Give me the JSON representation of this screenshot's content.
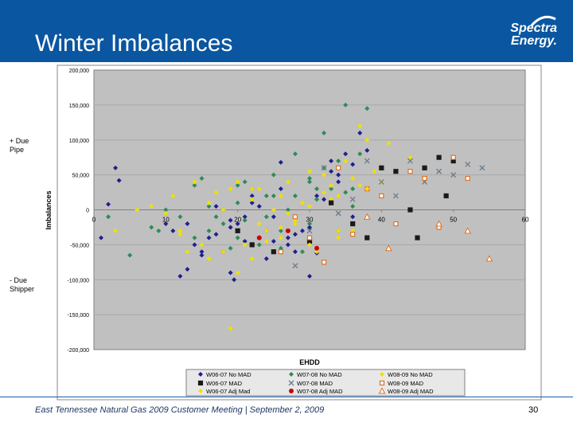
{
  "slide": {
    "title": "Winter Imbalances",
    "logo_line1": "Spectra",
    "logo_line2": "Energy.",
    "due_pipe_label": "+ Due Pipe",
    "due_shipper_label": "- Due Shipper",
    "footer": "East Tennessee Natural Gas 2009 Customer Meeting | September 2, 2009",
    "page_number": "30"
  },
  "colors": {
    "header_bg": "#0a56a0",
    "plot_bg": "#c0c0c0",
    "W06-07 No MAD": "#1f1f8f",
    "W07-08 No MAD": "#2e8b57",
    "W08-09 No MAD": "#f0e000",
    "W06-07 MAD": "#1a1a1a",
    "W07-08 MAD": "#6a7a8a",
    "W08-09 MAD": "#e07020",
    "W06-07 Adj Mad": "#f0e000",
    "W07-08 Adj MAD": "#cc0000",
    "W08-09 Adj MAD": "#e07020"
  },
  "chart_data": {
    "type": "scatter",
    "xlabel": "EHDD",
    "ylabel": "Imbalances",
    "xlim": [
      0,
      60
    ],
    "ylim": [
      -200000,
      200000
    ],
    "x_ticks": [
      "0",
      "10",
      "20",
      "30",
      "40",
      "50",
      "60"
    ],
    "y_ticks": [
      "200,000",
      "150,000",
      "100,000",
      "50,000",
      "0",
      "-50,000",
      "-100,000",
      "-150,000",
      "-200,000"
    ],
    "series": [
      {
        "name": "W06-07 No MAD",
        "marker": "diamond",
        "x": [
          1,
          2,
          3,
          3.5,
          10,
          11,
          12,
          13,
          14,
          15,
          16,
          17,
          18,
          19,
          19.5,
          20,
          21,
          22,
          23,
          24,
          25,
          26,
          27,
          28,
          29,
          30,
          31,
          32,
          33,
          34,
          35,
          36,
          37,
          38,
          17,
          19,
          22,
          26,
          28,
          30,
          24,
          13,
          21,
          25,
          33,
          36,
          31,
          15,
          19,
          27,
          34
        ],
        "y": [
          -40000,
          8000,
          60000,
          42000,
          -20000,
          -30000,
          -95000,
          -85000,
          -50000,
          -60000,
          -40000,
          -35000,
          -60000,
          -90000,
          -100000,
          -20000,
          -10000,
          20000,
          5000,
          -30000,
          -45000,
          30000,
          -40000,
          -60000,
          -30000,
          -95000,
          20000,
          15000,
          70000,
          40000,
          80000,
          -10000,
          110000,
          85000,
          5000,
          -15000,
          10000,
          68000,
          -35000,
          -25000,
          -70000,
          -20000,
          -45000,
          -10000,
          55000,
          65000,
          -62000,
          -65000,
          -25000,
          -50000,
          50000
        ]
      },
      {
        "name": "W07-08 No MAD",
        "marker": "diamond",
        "x": [
          2,
          5,
          8,
          9,
          10,
          12,
          14,
          15,
          16,
          18,
          19,
          20,
          21,
          22,
          23,
          24,
          25,
          26,
          27,
          28,
          29,
          30,
          31,
          32,
          33,
          34,
          35,
          36,
          37,
          38,
          16,
          18,
          20,
          22,
          24,
          26,
          28,
          30,
          32,
          34,
          36,
          14,
          17,
          20,
          25,
          30,
          35,
          21,
          31
        ],
        "y": [
          -10000,
          -65000,
          -25000,
          -30000,
          0,
          -10000,
          35000,
          45000,
          -30000,
          -20000,
          -55000,
          10000,
          40000,
          30000,
          -50000,
          20000,
          50000,
          -30000,
          0,
          80000,
          -60000,
          45000,
          15000,
          110000,
          30000,
          70000,
          150000,
          30000,
          80000,
          145000,
          5000,
          0,
          -40000,
          15000,
          -10000,
          -55000,
          20000,
          40000,
          60000,
          -30000,
          5000,
          -40000,
          -10000,
          35000,
          20000,
          -20000,
          25000,
          -15000,
          30000
        ]
      },
      {
        "name": "W08-09 No MAD",
        "marker": "diamond",
        "x": [
          3,
          6,
          8,
          10,
          11,
          12,
          13,
          14,
          15,
          16,
          17,
          18,
          19,
          20,
          21,
          22,
          23,
          24,
          25,
          26,
          27,
          28,
          29,
          30,
          31,
          32,
          33,
          34,
          35,
          36,
          37,
          38,
          39,
          40,
          18,
          20,
          22,
          24,
          26,
          28,
          30,
          32,
          34,
          36,
          12,
          16,
          19,
          23,
          27,
          33,
          37
        ],
        "y": [
          -30000,
          0,
          5000,
          -5000,
          20000,
          -30000,
          -60000,
          40000,
          -50000,
          -70000,
          25000,
          0,
          -170000,
          40000,
          -50000,
          15000,
          30000,
          -30000,
          0,
          20000,
          40000,
          -20000,
          10000,
          55000,
          -60000,
          50000,
          35000,
          -40000,
          70000,
          -30000,
          120000,
          100000,
          55000,
          40000,
          -60000,
          -90000,
          30000,
          -45000,
          -25000,
          -15000,
          5000,
          25000,
          -30000,
          45000,
          -35000,
          10000,
          30000,
          -20000,
          -5000,
          15000,
          35000
        ]
      },
      {
        "name": "W06-07 MAD",
        "marker": "square",
        "x": [
          20,
          22,
          25,
          30,
          33,
          36,
          38,
          40,
          42,
          44,
          45,
          46,
          48,
          49,
          50
        ],
        "y": [
          -30000,
          -50000,
          -60000,
          -45000,
          10000,
          -20000,
          -40000,
          60000,
          55000,
          0,
          -40000,
          60000,
          75000,
          20000,
          70000
        ]
      },
      {
        "name": "W07-08 MAD",
        "marker": "x",
        "x": [
          28,
          30,
          32,
          34,
          36,
          38,
          40,
          42,
          44,
          46,
          48,
          50,
          52,
          54
        ],
        "y": [
          -80000,
          -30000,
          60000,
          -5000,
          15000,
          70000,
          40000,
          20000,
          70000,
          40000,
          55000,
          50000,
          65000,
          60000
        ]
      },
      {
        "name": "W08-09 MAD",
        "marker": "square",
        "x": [
          26,
          28,
          30,
          32,
          34,
          36,
          38,
          40,
          42,
          44,
          46,
          48,
          50,
          52
        ],
        "y": [
          -60000,
          -10000,
          -40000,
          -75000,
          60000,
          -35000,
          30000,
          20000,
          -20000,
          55000,
          45000,
          -25000,
          75000,
          45000
        ]
      },
      {
        "name": "W06-07 Adj Mad",
        "marker": "diamond",
        "x": [
          22,
          26,
          30,
          34,
          38,
          41,
          44
        ],
        "y": [
          -70000,
          -40000,
          -50000,
          20000,
          30000,
          95000,
          75000
        ]
      },
      {
        "name": "W07-08 Adj MAD",
        "marker": "circle",
        "x": [
          23,
          27,
          31
        ],
        "y": [
          -40000,
          -30000,
          -55000
        ]
      },
      {
        "name": "W08-09 Adj MAD",
        "marker": "triangle",
        "x": [
          38,
          41,
          48,
          52,
          55
        ],
        "y": [
          -10000,
          -55000,
          -20000,
          -30000,
          -70000
        ]
      }
    ],
    "legend_position": "bottom"
  }
}
